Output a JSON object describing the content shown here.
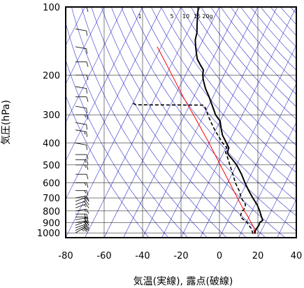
{
  "chart_data": {
    "type": "line",
    "title": "",
    "xlabel": "気温(実線), 露点(破線)",
    "ylabel": "気圧(hPa)",
    "x_unit": "°C",
    "y_unit": "hPa",
    "xlim": [
      -80,
      40
    ],
    "ylim": [
      1050,
      100
    ],
    "y_scale": "log",
    "grid": true,
    "x_ticks": [
      -80,
      -60,
      -40,
      -20,
      0,
      20,
      40
    ],
    "y_ticks": [
      100,
      200,
      300,
      400,
      500,
      600,
      700,
      800,
      900,
      1000
    ],
    "mixing_ratio_labels": [
      "1",
      "5",
      "10",
      "15",
      "20g"
    ],
    "colors": {
      "temperature": "#000000",
      "dewpoint": "#000000",
      "parcel": "#ff0000",
      "background_lines": "#3333cc",
      "grid": "#000000"
    },
    "series": [
      {
        "style": "solid",
        "points": [
          {
            "p": 1008,
            "t": 17.5
          },
          {
            "p": 1000,
            "t": 17.2
          },
          {
            "p": 975,
            "t": 16.8
          },
          {
            "p": 950,
            "t": 17.0
          },
          {
            "p": 925,
            "t": 17.3
          },
          {
            "p": 900,
            "t": 17.0
          },
          {
            "p": 880,
            "t": 18.0
          },
          {
            "p": 850,
            "t": 16.5
          },
          {
            "p": 800,
            "t": 14.0
          },
          {
            "p": 750,
            "t": 11.0
          },
          {
            "p": 700,
            "t": 7.0
          },
          {
            "p": 650,
            "t": 3.0
          },
          {
            "p": 600,
            "t": -1.0
          },
          {
            "p": 550,
            "t": -5.0
          },
          {
            "p": 500,
            "t": -10.0
          },
          {
            "p": 470,
            "t": -14.0
          },
          {
            "p": 450,
            "t": -17.0
          },
          {
            "p": 440,
            "t": -18.0
          },
          {
            "p": 420,
            "t": -18.5
          },
          {
            "p": 400,
            "t": -21.0
          },
          {
            "p": 370,
            "t": -25.0
          },
          {
            "p": 350,
            "t": -27.0
          },
          {
            "p": 320,
            "t": -30.0
          },
          {
            "p": 300,
            "t": -34.0
          },
          {
            "p": 280,
            "t": -37.0
          },
          {
            "p": 250,
            "t": -42.0
          },
          {
            "p": 230,
            "t": -46.0
          },
          {
            "p": 210,
            "t": -49.5
          },
          {
            "p": 200,
            "t": -51.0
          },
          {
            "p": 190,
            "t": -52.0
          },
          {
            "p": 180,
            "t": -55.0
          },
          {
            "p": 170,
            "t": -58.0
          },
          {
            "p": 160,
            "t": -60.0
          },
          {
            "p": 150,
            "t": -62.0
          },
          {
            "p": 140,
            "t": -64.0
          },
          {
            "p": 130,
            "t": -65.0
          },
          {
            "p": 120,
            "t": -67.0
          },
          {
            "p": 110,
            "t": -69.0
          },
          {
            "p": 100,
            "t": -71.0
          }
        ]
      },
      {
        "style": "dashed",
        "points": [
          {
            "p": 1008,
            "t": 16.5
          },
          {
            "p": 1000,
            "t": 16.0
          },
          {
            "p": 960,
            "t": 14.5
          },
          {
            "p": 925,
            "t": 12.0
          },
          {
            "p": 900,
            "t": 10.5
          },
          {
            "p": 870,
            "t": 7.5
          },
          {
            "p": 850,
            "t": 5.5
          },
          {
            "p": 820,
            "t": 5.0
          },
          {
            "p": 800,
            "t": 5.0
          },
          {
            "p": 780,
            "t": 5.5
          },
          {
            "p": 750,
            "t": 5.0
          },
          {
            "p": 700,
            "t": 1.0
          },
          {
            "p": 650,
            "t": -2.0
          },
          {
            "p": 600,
            "t": -6.0
          },
          {
            "p": 550,
            "t": -9.5
          },
          {
            "p": 500,
            "t": -13.5
          },
          {
            "p": 460,
            "t": -17.0
          },
          {
            "p": 440,
            "t": -19.0
          },
          {
            "p": 420,
            "t": -19.5
          },
          {
            "p": 400,
            "t": -23.0
          },
          {
            "p": 350,
            "t": -30.5
          },
          {
            "p": 320,
            "t": -35.0
          },
          {
            "p": 300,
            "t": -38.0
          },
          {
            "p": 280,
            "t": -41.0
          },
          {
            "p": 272,
            "t": -43.0
          },
          {
            "p": 271,
            "t": -78.0
          },
          {
            "p": 265,
            "t": -81.0
          }
        ]
      },
      {
        "style": "parcel",
        "points": [
          {
            "p": 1008,
            "t": 17.0
          },
          {
            "p": 950,
            "t": 15.5
          },
          {
            "p": 900,
            "t": 12.5
          },
          {
            "p": 850,
            "t": 9.5
          },
          {
            "p": 800,
            "t": 6.0
          },
          {
            "p": 700,
            "t": -1.0
          },
          {
            "p": 600,
            "t": -9.0
          },
          {
            "p": 500,
            "t": -18.5
          },
          {
            "p": 400,
            "t": -30.0
          },
          {
            "p": 300,
            "t": -45.5
          },
          {
            "p": 250,
            "t": -55.5
          },
          {
            "p": 200,
            "t": -67.0
          },
          {
            "p": 150,
            "t": -82.0
          }
        ]
      }
    ],
    "wind_barbs": [
      {
        "p": 1000,
        "dir": 240,
        "kt": 25
      },
      {
        "p": 975,
        "dir": 245,
        "kt": 20
      },
      {
        "p": 950,
        "dir": 250,
        "kt": 15
      },
      {
        "p": 925,
        "dir": 250,
        "kt": 15
      },
      {
        "p": 900,
        "dir": 260,
        "kt": 20
      },
      {
        "p": 875,
        "dir": 260,
        "kt": 20
      },
      {
        "p": 850,
        "dir": 270,
        "kt": 20
      },
      {
        "p": 825,
        "dir": 270,
        "kt": 20
      },
      {
        "p": 800,
        "dir": 260,
        "kt": 15
      },
      {
        "p": 775,
        "dir": 250,
        "kt": 15
      },
      {
        "p": 750,
        "dir": 250,
        "kt": 15
      },
      {
        "p": 725,
        "dir": 250,
        "kt": 15
      },
      {
        "p": 700,
        "dir": 260,
        "kt": 15
      },
      {
        "p": 650,
        "dir": 270,
        "kt": 15
      },
      {
        "p": 600,
        "dir": 270,
        "kt": 15
      },
      {
        "p": 550,
        "dir": 270,
        "kt": 10
      },
      {
        "p": 500,
        "dir": 270,
        "kt": 15
      },
      {
        "p": 475,
        "dir": 270,
        "kt": 15
      },
      {
        "p": 450,
        "dir": 270,
        "kt": 10
      },
      {
        "p": 400,
        "dir": 280,
        "kt": 10
      },
      {
        "p": 350,
        "dir": 280,
        "kt": 15
      },
      {
        "p": 325,
        "dir": 280,
        "kt": 10
      },
      {
        "p": 300,
        "dir": 270,
        "kt": 15
      },
      {
        "p": 275,
        "dir": 280,
        "kt": 10
      },
      {
        "p": 250,
        "dir": 270,
        "kt": 10
      },
      {
        "p": 225,
        "dir": 280,
        "kt": 10
      },
      {
        "p": 200,
        "dir": 270,
        "kt": 10
      },
      {
        "p": 175,
        "dir": 270,
        "kt": 10
      },
      {
        "p": 150,
        "dir": 280,
        "kt": 10
      },
      {
        "p": 125,
        "dir": 280,
        "kt": 10
      },
      {
        "p": 100,
        "dir": 270,
        "kt": 10
      }
    ]
  }
}
